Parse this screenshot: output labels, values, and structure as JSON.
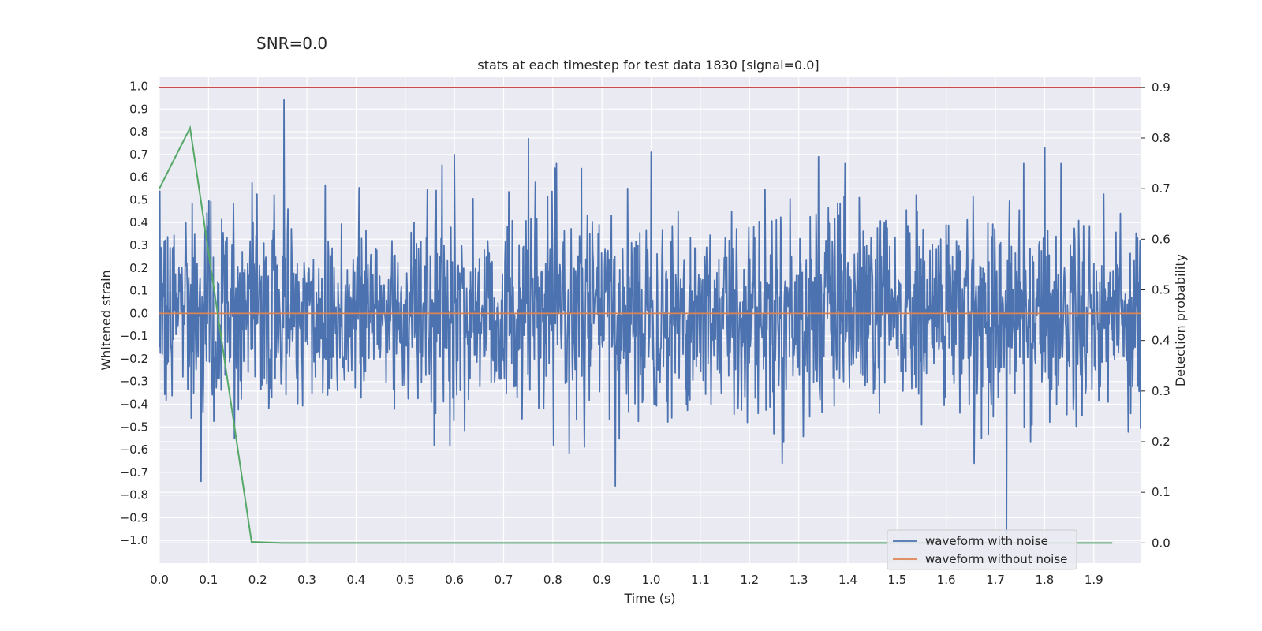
{
  "suptitle": "SNR=0.0",
  "chart_data": {
    "type": "line",
    "title": "stats at each timestep for test data 1830 [signal=0.0]",
    "xlabel": "Time (s)",
    "ylabel_left": "Whitened strain",
    "ylabel_right": "Detection probability",
    "xlim": [
      0.0,
      1.995
    ],
    "ylim_left": [
      -1.1,
      1.04
    ],
    "ylim_right": [
      -0.04,
      0.92
    ],
    "x_ticks": [
      "0.0",
      "0.1",
      "0.2",
      "0.3",
      "0.4",
      "0.5",
      "0.6",
      "0.7",
      "0.8",
      "0.9",
      "1.0",
      "1.1",
      "1.2",
      "1.3",
      "1.4",
      "1.5",
      "1.6",
      "1.7",
      "1.8",
      "1.9"
    ],
    "y_left_ticks": [
      "1.0",
      "0.9",
      "0.8",
      "0.7",
      "0.6",
      "0.5",
      "0.4",
      "0.3",
      "0.2",
      "0.1",
      "0.0",
      "−0.1",
      "−0.2",
      "−0.3",
      "−0.4",
      "−0.5",
      "−0.6",
      "−0.7",
      "−0.8",
      "−0.9",
      "−1.0"
    ],
    "y_right_ticks": [
      "0.9",
      "0.8",
      "0.7",
      "0.6",
      "0.5",
      "0.4",
      "0.3",
      "0.2",
      "0.1",
      "0.0"
    ],
    "grid": true,
    "legend_position": "lower-right",
    "colors": {
      "noise": "#4c72b0",
      "clean": "#dd8452",
      "prob": "#55a868",
      "threshold": "#c44e52",
      "background": "#eaeaf2"
    },
    "series": [
      {
        "name": "waveform with noise",
        "axis": "left",
        "style": "noisy-signal",
        "stdev": 0.22,
        "sample_count": 2000,
        "peaks": [
          {
            "x": 0.253,
            "y": 0.94
          },
          {
            "x": 0.75,
            "y": 0.77
          },
          {
            "x": 1.8,
            "y": 0.73
          },
          {
            "x": 0.927,
            "y": -0.76
          },
          {
            "x": 0.085,
            "y": -0.74
          },
          {
            "x": 1.723,
            "y": -0.97
          },
          {
            "x": 0.6,
            "y": 0.7
          },
          {
            "x": 1.0,
            "y": 0.71
          },
          {
            "x": 1.34,
            "y": 0.69
          }
        ]
      },
      {
        "name": "waveform without noise",
        "axis": "left",
        "x": [
          0.0,
          1.995
        ],
        "y": [
          0.0,
          0.0
        ]
      },
      {
        "name": "detection probability",
        "axis": "right",
        "x": [
          0.0,
          0.0625,
          0.1875,
          0.25,
          0.3125,
          0.375,
          0.5,
          0.75,
          1.0,
          1.25,
          1.5,
          1.75,
          1.9375
        ],
        "y": [
          0.7,
          0.82,
          0.002,
          0.0,
          0.0,
          0.0,
          0.0,
          0.0,
          0.0,
          0.0,
          0.0,
          0.0,
          0.0
        ]
      },
      {
        "name": "threshold",
        "axis": "right",
        "x": [
          0.0,
          1.995
        ],
        "y": [
          0.9,
          0.9
        ]
      }
    ]
  }
}
